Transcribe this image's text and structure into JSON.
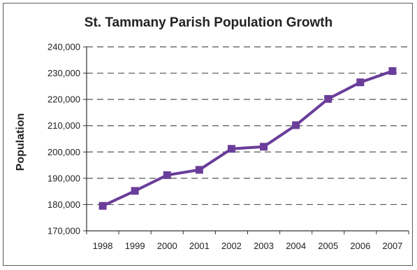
{
  "chart_data": {
    "type": "line",
    "title": "St. Tammany Parish Population Growth",
    "xlabel": "",
    "ylabel": "Population",
    "categories": [
      "1998",
      "1999",
      "2000",
      "2001",
      "2002",
      "2003",
      "2004",
      "2005",
      "2006",
      "2007"
    ],
    "series": [
      {
        "values": [
          179500,
          185200,
          191200,
          193200,
          201200,
          202000,
          210200,
          220200,
          226500,
          230800
        ]
      }
    ],
    "ylim": [
      170000,
      240000
    ],
    "yticks": [
      170000,
      180000,
      190000,
      200000,
      210000,
      220000,
      230000,
      240000
    ],
    "ytick_labels": [
      "170,000",
      "180,000",
      "190,000",
      "200,000",
      "210,000",
      "220,000",
      "230,000",
      "240,000"
    ],
    "grid": "horizontal dashed",
    "line_color": "#6a3d9a",
    "marker": "square"
  }
}
